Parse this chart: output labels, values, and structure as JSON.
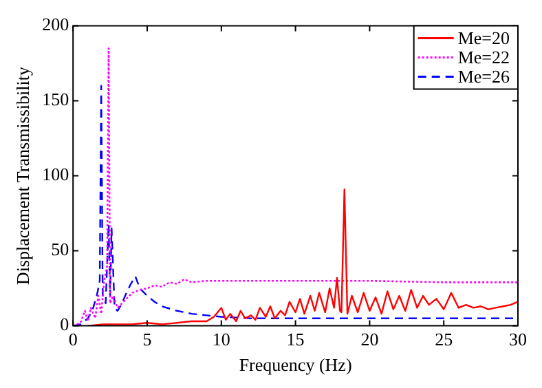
{
  "chart_data": {
    "type": "line",
    "xlabel": "Frequency (Hz)",
    "ylabel": "Displacement Transmissibility",
    "xlim": [
      0,
      30
    ],
    "xticks": [
      0,
      5,
      10,
      15,
      20,
      25,
      30
    ],
    "ylim": [
      0,
      200
    ],
    "yticks": [
      0,
      50,
      100,
      150,
      200
    ],
    "grid": false,
    "legend": "top right",
    "marker": "none",
    "series": [
      {
        "name": "Me=20",
        "color": "#ff0000",
        "line_style": "solid",
        "x": [
          1,
          2,
          3,
          4,
          5,
          6,
          7,
          8,
          9,
          9.5,
          10,
          10.3,
          10.6,
          11,
          11.3,
          11.6,
          12,
          12.3,
          12.6,
          13,
          13.3,
          13.6,
          14,
          14.3,
          14.6,
          15,
          15.3,
          15.6,
          16,
          16.3,
          16.6,
          17,
          17.3,
          17.6,
          17.8,
          18,
          18.1,
          18.3,
          18.5,
          18.8,
          19.2,
          19.6,
          20,
          20.4,
          20.8,
          21.2,
          21.6,
          22,
          22.4,
          22.8,
          23.2,
          23.6,
          24,
          24.5,
          25,
          25.5,
          26,
          26.5,
          27,
          27.5,
          28,
          28.5,
          29,
          29.5,
          30
        ],
        "values": [
          0,
          1,
          1,
          1,
          2,
          1,
          2,
          3,
          3,
          6,
          12,
          4,
          8,
          3,
          10,
          5,
          7,
          4,
          12,
          6,
          13,
          5,
          10,
          7,
          16,
          9,
          18,
          8,
          20,
          10,
          22,
          9,
          25,
          12,
          32,
          10,
          9,
          91,
          8,
          20,
          9,
          22,
          10,
          19,
          8,
          23,
          11,
          20,
          10,
          24,
          12,
          20,
          14,
          18,
          11,
          22,
          12,
          14,
          12,
          13,
          11,
          12,
          13,
          14,
          16
        ]
      },
      {
        "name": "Me=22",
        "color": "#ff00ff",
        "line_style": "dotted",
        "x": [
          0,
          0.5,
          0.8,
          1,
          1.2,
          1.5,
          1.7,
          1.9,
          2.1,
          2.3,
          2.4,
          2.5,
          2.7,
          3,
          3.3,
          3.6,
          4,
          4.5,
          5,
          5.5,
          6,
          6.5,
          7,
          7.5,
          8,
          9,
          10,
          12,
          15,
          20,
          25,
          30
        ],
        "values": [
          0,
          2,
          10,
          3,
          12,
          5,
          20,
          8,
          30,
          40,
          185,
          15,
          20,
          12,
          15,
          18,
          22,
          24,
          25,
          27,
          26,
          29,
          28,
          31,
          29,
          30,
          30,
          30,
          30,
          30,
          29,
          29
        ]
      },
      {
        "name": "Me=26",
        "color": "#0000ff",
        "line_style": "dashed",
        "x": [
          0,
          0.5,
          1,
          1.3,
          1.6,
          1.8,
          1.9,
          2,
          2.2,
          2.4,
          2.5,
          2.6,
          2.8,
          3,
          3.3,
          3.6,
          3.9,
          4.2,
          4.5,
          5,
          5.5,
          6,
          7,
          8,
          9,
          10,
          12,
          15,
          20,
          25,
          30
        ],
        "values": [
          0,
          1,
          5,
          10,
          20,
          30,
          160,
          20,
          15,
          68,
          20,
          65,
          12,
          10,
          15,
          22,
          28,
          33,
          25,
          20,
          16,
          13,
          10,
          8,
          7,
          6,
          5,
          5,
          5,
          5,
          5
        ]
      }
    ]
  }
}
